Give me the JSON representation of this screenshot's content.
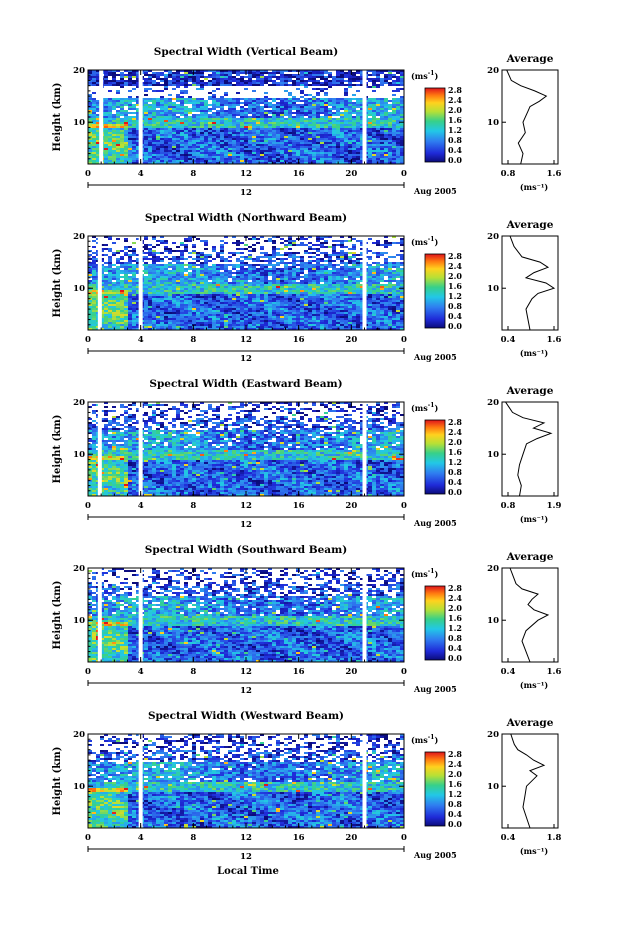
{
  "figure": {
    "xlabel": "Local Time"
  },
  "colorbar": {
    "unit": "(ms",
    "unit_exp": "-1",
    "unit_close": ")",
    "ticks": [
      "2.8",
      "2.4",
      "2.0",
      "1.6",
      "1.2",
      "0.8",
      "0.4",
      "0.0"
    ]
  },
  "date_label": "Aug 2005",
  "day_label": "12",
  "avg_title": "Average",
  "chart_data": [
    {
      "type": "heatmap",
      "title": "Spectral Width (Vertical Beam)",
      "xlabel": "",
      "ylabel": "Height (km)",
      "x_ticks": [
        "0",
        "4",
        "8",
        "12",
        "16",
        "20",
        "0"
      ],
      "xlim": [
        0,
        24
      ],
      "y_ticks": [
        "20",
        "10"
      ],
      "ylim": [
        2,
        20
      ],
      "colorbar_range": [
        0.0,
        3.0
      ],
      "gaps_hours": [
        1.0,
        4.0,
        21.0
      ],
      "profile": {
        "type": "line",
        "title": "Average",
        "xlabel": "(ms⁻¹)",
        "x_ticks": [
          "0.8",
          "1.6"
        ],
        "xlim": [
          0.5,
          1.7
        ],
        "y_ticks": [
          "20",
          "10"
        ],
        "heights_km": [
          2,
          4,
          6,
          8,
          10,
          12,
          13,
          14,
          15,
          16,
          17,
          18,
          19,
          20
        ],
        "values": [
          0.9,
          0.95,
          0.85,
          1.0,
          0.95,
          1.05,
          1.1,
          1.3,
          1.45,
          1.2,
          0.9,
          0.7,
          0.65,
          0.6
        ]
      }
    },
    {
      "type": "heatmap",
      "title": "Spectral Width (Northward Beam)",
      "xlabel": "",
      "ylabel": "Height (km)",
      "x_ticks": [
        "0",
        "4",
        "8",
        "12",
        "16",
        "20",
        "0"
      ],
      "xlim": [
        0,
        24
      ],
      "y_ticks": [
        "20",
        "10"
      ],
      "ylim": [
        2,
        20
      ],
      "colorbar_range": [
        0.0,
        3.0
      ],
      "gaps_hours": [
        0.9,
        4.0,
        21.0
      ],
      "profile": {
        "type": "line",
        "title": "Average",
        "xlabel": "(ms⁻¹)",
        "x_ticks": [
          "0.4",
          "1.6"
        ],
        "xlim": [
          0.3,
          1.7
        ],
        "y_ticks": [
          "20",
          "10"
        ],
        "heights_km": [
          2,
          4,
          6,
          8,
          9,
          10,
          11,
          12,
          13,
          14,
          15,
          16,
          17,
          18,
          19,
          20
        ],
        "values": [
          1.0,
          0.95,
          0.9,
          1.05,
          1.2,
          1.6,
          1.4,
          0.9,
          1.1,
          1.45,
          1.25,
          0.8,
          0.7,
          0.6,
          0.55,
          0.5
        ]
      }
    },
    {
      "type": "heatmap",
      "title": "Spectral Width (Eastward Beam)",
      "xlabel": "",
      "ylabel": "Height (km)",
      "x_ticks": [
        "0",
        "4",
        "8",
        "12",
        "16",
        "20",
        "0"
      ],
      "xlim": [
        0,
        24
      ],
      "y_ticks": [
        "20",
        "10"
      ],
      "ylim": [
        2,
        20
      ],
      "colorbar_range": [
        0.0,
        3.0
      ],
      "gaps_hours": [
        0.9,
        4.0,
        21.0
      ],
      "profile": {
        "type": "line",
        "title": "Average",
        "xlabel": "(ms⁻¹)",
        "x_ticks": [
          "0.8",
          "1.9"
        ],
        "xlim": [
          0.5,
          2.1
        ],
        "y_ticks": [
          "20",
          "10"
        ],
        "heights_km": [
          2,
          4,
          6,
          8,
          10,
          12,
          13,
          14,
          15,
          16,
          17,
          18,
          19,
          20
        ],
        "values": [
          1.0,
          1.05,
          0.95,
          1.0,
          1.1,
          1.2,
          1.5,
          1.9,
          1.4,
          1.7,
          1.1,
          0.8,
          0.7,
          0.6
        ]
      }
    },
    {
      "type": "heatmap",
      "title": "Spectral Width (Southward Beam)",
      "xlabel": "",
      "ylabel": "Height (km)",
      "x_ticks": [
        "0",
        "4",
        "8",
        "12",
        "16",
        "20",
        "0"
      ],
      "xlim": [
        0,
        24
      ],
      "y_ticks": [
        "20",
        "10"
      ],
      "ylim": [
        2,
        20
      ],
      "colorbar_range": [
        0.0,
        3.0
      ],
      "gaps_hours": [
        0.9,
        4.0,
        21.0
      ],
      "profile": {
        "type": "line",
        "title": "Average",
        "xlabel": "(ms⁻¹)",
        "x_ticks": [
          "0.4",
          "1.6"
        ],
        "xlim": [
          0.3,
          1.7
        ],
        "y_ticks": [
          "20",
          "10"
        ],
        "heights_km": [
          2,
          4,
          6,
          8,
          10,
          11,
          12,
          13,
          14,
          15,
          16,
          17,
          18,
          19,
          20
        ],
        "values": [
          1.0,
          0.9,
          0.8,
          0.9,
          1.2,
          1.45,
          1.1,
          0.95,
          1.05,
          1.2,
          0.8,
          0.65,
          0.6,
          0.55,
          0.5
        ]
      }
    },
    {
      "type": "heatmap",
      "title": "Spectral Width (Westward Beam)",
      "xlabel": "Local Time",
      "ylabel": "Height (km)",
      "x_ticks": [
        "0",
        "4",
        "8",
        "12",
        "16",
        "20",
        "0"
      ],
      "xlim": [
        0,
        24
      ],
      "y_ticks": [
        "20",
        "10"
      ],
      "ylim": [
        2,
        20
      ],
      "colorbar_range": [
        0.0,
        3.0
      ],
      "gaps_hours": [
        4.0,
        21.0
      ],
      "profile": {
        "type": "line",
        "title": "Average",
        "xlabel": "(ms⁻¹)",
        "x_ticks": [
          "0.4",
          "1.8"
        ],
        "xlim": [
          0.3,
          1.9
        ],
        "y_ticks": [
          "20",
          "10"
        ],
        "heights_km": [
          2,
          4,
          6,
          8,
          10,
          12,
          13,
          14,
          15,
          16,
          17,
          18,
          19,
          20
        ],
        "values": [
          1.1,
          1.0,
          0.9,
          0.95,
          1.0,
          1.3,
          1.1,
          1.5,
          1.2,
          1.0,
          0.75,
          0.65,
          0.6,
          0.55
        ]
      }
    }
  ]
}
